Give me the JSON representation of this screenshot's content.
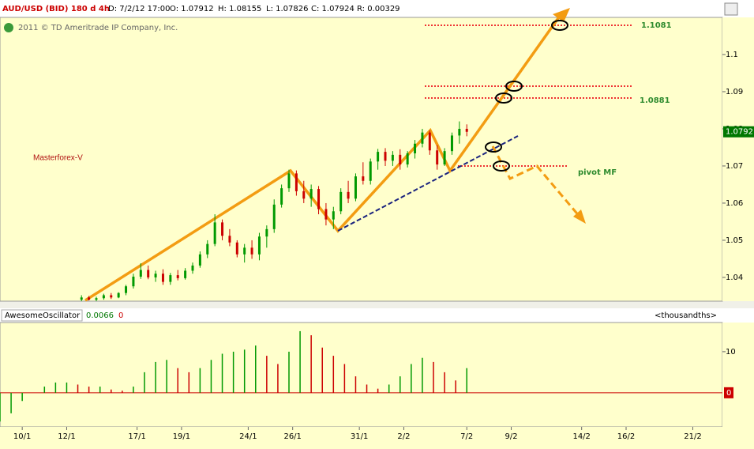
{
  "header": {
    "symbol": "AUD/USD (BID) 180 d 4h",
    "date": "D: 7/2/12 17:00",
    "open": "O: 1.07912",
    "high": "H: 1.08155",
    "low": "L: 1.07826",
    "close": "C: 1.07924",
    "range": "R: 0.00329",
    "copyright": "2011 © TD Ameritrade IP Company, Inc."
  },
  "chart_data": [
    {
      "type": "candlestick",
      "title": "Masterforex-V",
      "annotations": {
        "target": "1.1081",
        "level": "1.0881",
        "pivot": "pivot MF"
      },
      "last_price": 1.0792,
      "up_color": "#009900",
      "down_color": "#cc0000",
      "xlim": [
        0,
        195
      ],
      "xticks": [
        {
          "value": 6,
          "label": "10/1"
        },
        {
          "value": 18,
          "label": "12/1"
        },
        {
          "value": 37,
          "label": "17/1"
        },
        {
          "value": 49,
          "label": "19/1"
        },
        {
          "value": 67,
          "label": "24/1"
        },
        {
          "value": 79,
          "label": "26/1"
        },
        {
          "value": 97,
          "label": "31/1"
        },
        {
          "value": 109,
          "label": "2/2"
        },
        {
          "value": 126,
          "label": "7/2"
        },
        {
          "value": 138,
          "label": "9/2"
        },
        {
          "value": 157,
          "label": "14/2"
        },
        {
          "value": 169,
          "label": "16/2"
        },
        {
          "value": 187,
          "label": "21/2"
        }
      ],
      "ylim": [
        1.0336,
        1.11
      ],
      "yticks": [
        1.04,
        1.05,
        1.06,
        1.07,
        1.08,
        1.09,
        1.1
      ],
      "x": [
        22,
        24,
        26,
        28,
        30,
        32,
        34,
        36,
        38,
        40,
        42,
        44,
        46,
        48,
        50,
        52,
        54,
        56,
        58,
        60,
        62,
        64,
        66,
        68,
        70,
        72,
        74,
        76,
        78,
        80,
        82,
        84,
        86,
        88,
        90,
        92,
        94,
        96,
        98,
        100,
        102,
        104,
        106,
        108,
        110,
        112,
        114,
        116,
        118,
        120,
        122,
        124,
        126
      ],
      "ohlc": [
        [
          1.034,
          1.0352,
          1.0336,
          1.0346
        ],
        [
          1.0346,
          1.035,
          1.0338,
          1.034
        ],
        [
          1.034,
          1.0348,
          1.0336,
          1.0344
        ],
        [
          1.0344,
          1.0356,
          1.034,
          1.0352
        ],
        [
          1.0352,
          1.0358,
          1.0342,
          1.0346
        ],
        [
          1.0346,
          1.036,
          1.0344,
          1.0358
        ],
        [
          1.0358,
          1.038,
          1.0352,
          1.0376
        ],
        [
          1.0376,
          1.041,
          1.037,
          1.0402
        ],
        [
          1.0402,
          1.0438,
          1.0396,
          1.042
        ],
        [
          1.042,
          1.0432,
          1.0395,
          1.04
        ],
        [
          1.04,
          1.0418,
          1.0388,
          1.041
        ],
        [
          1.041,
          1.0422,
          1.038,
          1.0388
        ],
        [
          1.0388,
          1.0412,
          1.038,
          1.0406
        ],
        [
          1.0406,
          1.042,
          1.0392,
          1.0398
        ],
        [
          1.0398,
          1.0425,
          1.0394,
          1.0418
        ],
        [
          1.0418,
          1.044,
          1.041,
          1.0432
        ],
        [
          1.0432,
          1.047,
          1.0426,
          1.0462
        ],
        [
          1.0462,
          1.05,
          1.0452,
          1.049
        ],
        [
          1.049,
          1.057,
          1.0484,
          1.0548
        ],
        [
          1.0548,
          1.0556,
          1.05,
          1.0512
        ],
        [
          1.0512,
          1.053,
          1.0484,
          1.0494
        ],
        [
          1.0494,
          1.05,
          1.0454,
          1.0462
        ],
        [
          1.0462,
          1.049,
          1.044,
          1.048
        ],
        [
          1.048,
          1.05,
          1.045,
          1.0462
        ],
        [
          1.0462,
          1.052,
          1.0446,
          1.051
        ],
        [
          1.051,
          1.054,
          1.048,
          1.053
        ],
        [
          1.053,
          1.061,
          1.052,
          1.0596
        ],
        [
          1.0596,
          1.065,
          1.0588,
          1.064
        ],
        [
          1.064,
          1.069,
          1.063,
          1.068
        ],
        [
          1.068,
          1.0688,
          1.062,
          1.0632
        ],
        [
          1.0632,
          1.066,
          1.06,
          1.0612
        ],
        [
          1.0612,
          1.065,
          1.059,
          1.0638
        ],
        [
          1.0638,
          1.0646,
          1.057,
          1.0584
        ],
        [
          1.0584,
          1.06,
          1.054,
          1.0556
        ],
        [
          1.0556,
          1.059,
          1.053,
          1.0578
        ],
        [
          1.0578,
          1.064,
          1.057,
          1.063
        ],
        [
          1.063,
          1.066,
          1.06,
          1.0612
        ],
        [
          1.0612,
          1.068,
          1.0605,
          1.0672
        ],
        [
          1.0672,
          1.071,
          1.065,
          1.066
        ],
        [
          1.066,
          1.072,
          1.065,
          1.0712
        ],
        [
          1.0712,
          1.0746,
          1.069,
          1.0738
        ],
        [
          1.0738,
          1.0748,
          1.07,
          1.0714
        ],
        [
          1.0714,
          1.074,
          1.07,
          1.073
        ],
        [
          1.073,
          1.0745,
          1.069,
          1.0704
        ],
        [
          1.0704,
          1.074,
          1.0696,
          1.0734
        ],
        [
          1.0734,
          1.077,
          1.072,
          1.076
        ],
        [
          1.076,
          1.08,
          1.075,
          1.079
        ],
        [
          1.079,
          1.0796,
          1.073,
          1.0742
        ],
        [
          1.0742,
          1.0756,
          1.069,
          1.0704
        ],
        [
          1.0704,
          1.0748,
          1.07,
          1.074
        ],
        [
          1.074,
          1.079,
          1.073,
          1.0782
        ],
        [
          1.0782,
          1.082,
          1.076,
          1.08
        ],
        [
          1.08,
          1.0812,
          1.078,
          1.0792
        ]
      ]
    },
    {
      "type": "bar",
      "title": "AwesomeOscillator",
      "current": "0.0066",
      "zero_label": "0",
      "units": "<thousandths>",
      "up_color": "#009900",
      "down_color": "#cc0000",
      "ylim": [
        -8.3,
        17.1
      ],
      "yticks": [
        10
      ],
      "x": [
        0,
        3,
        6,
        9,
        12,
        15,
        18,
        21,
        24,
        27,
        30,
        33,
        36,
        39,
        42,
        45,
        48,
        51,
        54,
        57,
        60,
        63,
        66,
        69,
        72,
        75,
        78,
        81,
        84,
        87,
        90,
        93,
        96,
        99,
        102,
        105,
        108,
        111,
        114,
        117,
        120,
        123,
        126
      ],
      "values": [
        -7,
        -5,
        -2,
        0,
        1.5,
        2.5,
        2.5,
        2,
        1.5,
        1.5,
        0.8,
        0.5,
        1.5,
        5,
        7.5,
        8,
        6,
        5,
        6,
        8,
        9.5,
        10,
        10.5,
        11.5,
        9,
        7,
        10,
        15,
        14,
        11,
        9,
        7,
        4,
        2,
        1,
        2,
        4,
        7,
        8.5,
        7.5,
        5,
        3,
        6
      ]
    }
  ]
}
